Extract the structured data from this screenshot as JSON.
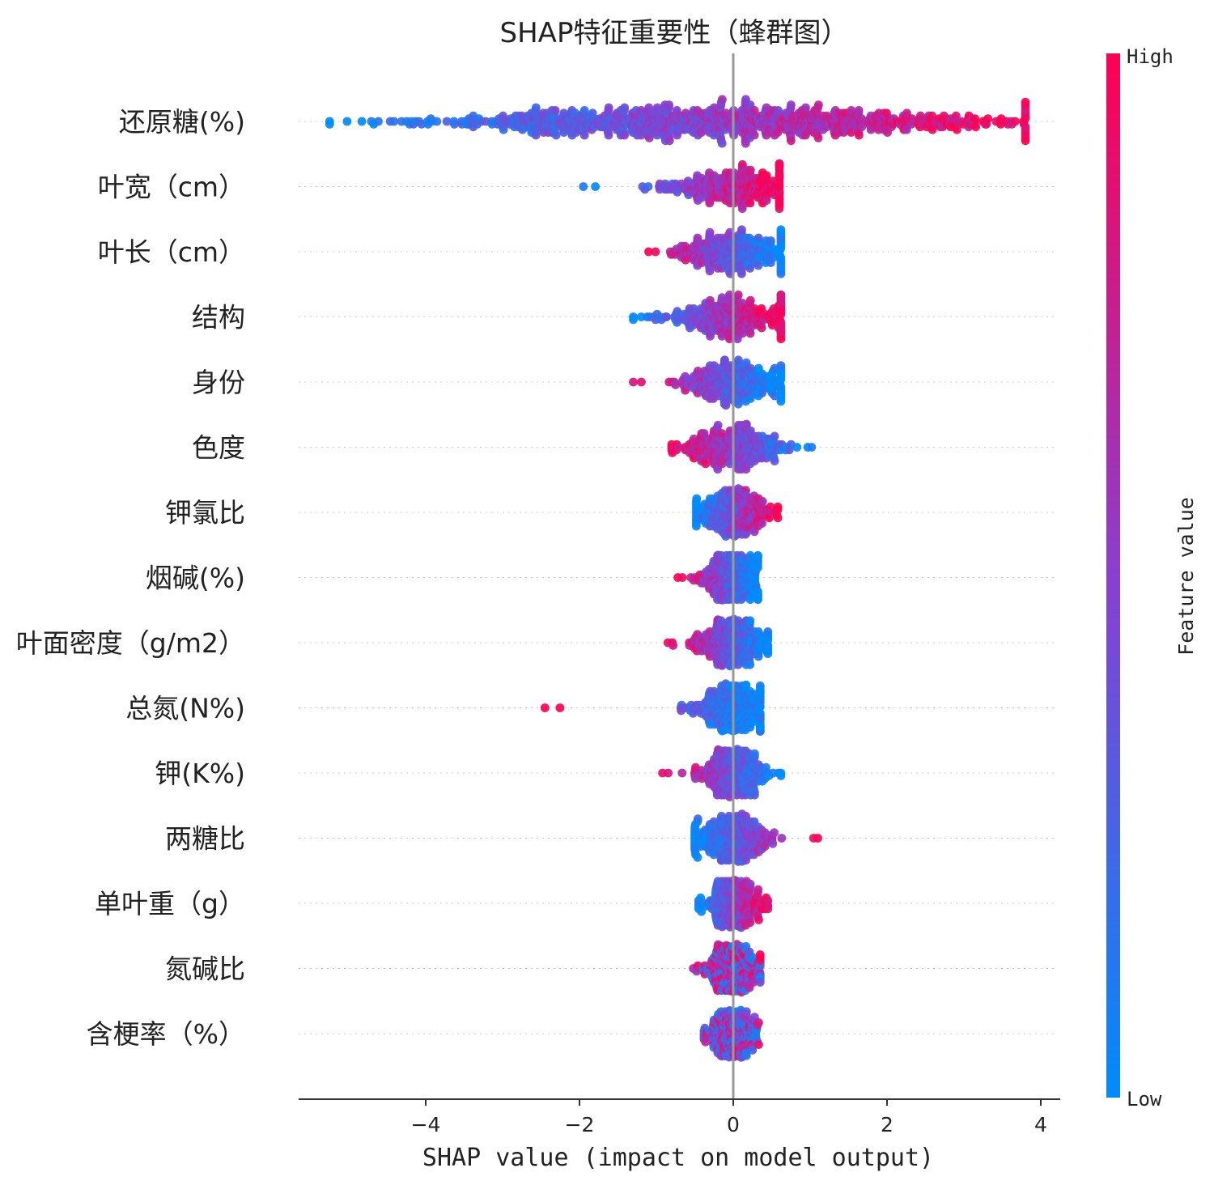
{
  "chart_data": {
    "type": "scatter",
    "subtype": "beeswarm",
    "title": "SHAP特征重要性（蜂群图）",
    "xlabel": "SHAP value (impact on model output)",
    "xlim": [
      -5.6,
      4.3
    ],
    "xticks": [
      -4,
      -2,
      0,
      2,
      4
    ],
    "xtick_labels": [
      "−4",
      "−2",
      "0",
      "2",
      "4"
    ],
    "grid": false,
    "colorbar": {
      "title": "Feature value",
      "high_label": "High",
      "low_label": "Low",
      "high_color": "#ff0052",
      "mid_color": "#8a3fcf",
      "low_color": "#008bfb"
    },
    "features": [
      {
        "name": "还原糖(%)",
        "min": -5.25,
        "max": 3.8,
        "low_side": "negative",
        "spread": 2.0
      },
      {
        "name": "叶宽（cm）",
        "min": -1.95,
        "max": 0.6,
        "low_side": "negative",
        "spread": 0.45
      },
      {
        "name": "叶长（cm）",
        "min": -1.1,
        "max": 0.62,
        "low_side": "positive",
        "spread": 0.4
      },
      {
        "name": "结构",
        "min": -1.3,
        "max": 0.62,
        "low_side": "negative",
        "spread": 0.42
      },
      {
        "name": "身份",
        "min": -1.3,
        "max": 0.62,
        "low_side": "positive",
        "spread": 0.35
      },
      {
        "name": "色度",
        "min": -0.8,
        "max": 1.02,
        "low_side": "positive",
        "spread": 0.35
      },
      {
        "name": "钾氯比",
        "min": -0.48,
        "max": 0.58,
        "low_side": "negative",
        "spread": 0.25
      },
      {
        "name": "烟碱(%)",
        "min": -0.72,
        "max": 0.32,
        "low_side": "positive",
        "spread": 0.2
      },
      {
        "name": "叶面密度（g/m2）",
        "min": -0.85,
        "max": 0.45,
        "low_side": "positive",
        "spread": 0.25
      },
      {
        "name": "总氮(N%)",
        "min": -2.45,
        "max": 0.35,
        "low_side": "positive",
        "spread": 0.25
      },
      {
        "name": "钾(K%)",
        "min": -0.92,
        "max": 0.62,
        "low_side": "positive",
        "spread": 0.22
      },
      {
        "name": "两糖比",
        "min": -0.5,
        "max": 1.1,
        "low_side": "negative",
        "spread": 0.25
      },
      {
        "name": "单叶重（g）",
        "min": -0.45,
        "max": 0.45,
        "low_side": "negative",
        "spread": 0.18
      },
      {
        "name": "氮碱比",
        "min": -0.52,
        "max": 0.35,
        "low_side": "mixed",
        "spread": 0.18
      },
      {
        "name": "含梗率（%）",
        "min": -0.38,
        "max": 0.33,
        "low_side": "mixed",
        "spread": 0.15
      }
    ]
  }
}
